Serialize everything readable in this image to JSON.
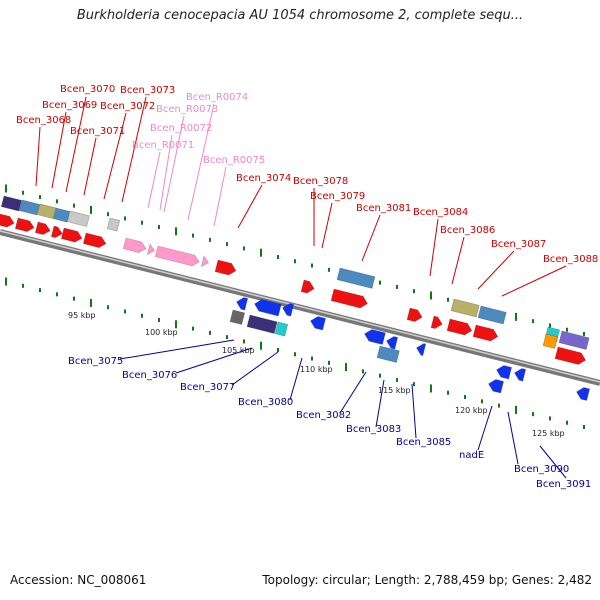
{
  "title": "Burkholderia cenocepacia AU 1054 chromosome 2, complete sequ...",
  "footer": {
    "accession": "Accession: NC_008061",
    "topology": "Topology: circular; Length: 2,788,459 bp; Genes: 2,482"
  },
  "colors": {
    "forward_label": "#cc0000",
    "rna_label": "#ee88cc",
    "reverse_label": "#000099",
    "backbone": "#8a8a8a"
  },
  "kbp_ticks": [
    "95 kbp",
    "100 kbp",
    "105 kbp",
    "110 kbp",
    "115 kbp",
    "120 kbp",
    "125 kbp"
  ],
  "forward_genes": [
    "Bcen_3068",
    "Bcen_3069",
    "Bcen_3070",
    "Bcen_3071",
    "Bcen_3072",
    "Bcen_3073",
    "Bcen_3074",
    "Bcen_3078",
    "Bcen_3079",
    "Bcen_3081",
    "Bcen_3084",
    "Bcen_3086",
    "Bcen_3087",
    "Bcen_3088"
  ],
  "rna_genes": [
    "Bcen_R0071",
    "Bcen_R0072",
    "Bcen_R0073",
    "Bcen_R0074",
    "Bcen_R0075"
  ],
  "reverse_genes": [
    "Bcen_3075",
    "Bcen_3076",
    "Bcen_3077",
    "Bcen_3080",
    "Bcen_3082",
    "Bcen_3083",
    "Bcen_3085",
    "nadE",
    "Bcen_3090",
    "Bcen_3091"
  ]
}
